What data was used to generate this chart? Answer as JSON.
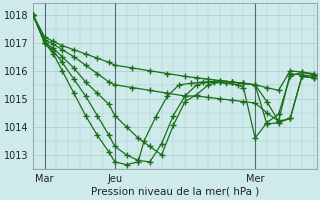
{
  "background_color": "#ceeaea",
  "grid_color": "#aacccc",
  "line_color": "#1a6e1a",
  "marker_color": "#1a6e1a",
  "xlabel": "Pression niveau de la mer( hPa )",
  "yticks": [
    1013,
    1014,
    1015,
    1016,
    1017,
    1018
  ],
  "ylim": [
    1012.5,
    1018.4
  ],
  "xlim": [
    0,
    97
  ],
  "xtick_positions": [
    4,
    28,
    76
  ],
  "xtick_labels": [
    "Mar",
    "Jeu",
    "Mer"
  ],
  "vlines": [
    4,
    28,
    76
  ],
  "series": [
    {
      "x": [
        0,
        4,
        7,
        10,
        14,
        18,
        22,
        26,
        28,
        34,
        40,
        46,
        52,
        56,
        60,
        64,
        68,
        72,
        76,
        80,
        84,
        88,
        92,
        96
      ],
      "y": [
        1018.0,
        1017.2,
        1017.05,
        1016.9,
        1016.75,
        1016.6,
        1016.45,
        1016.3,
        1016.2,
        1016.1,
        1016.0,
        1015.9,
        1015.8,
        1015.75,
        1015.7,
        1015.65,
        1015.6,
        1015.55,
        1015.5,
        1015.4,
        1015.3,
        1016.0,
        1015.95,
        1015.9
      ]
    },
    {
      "x": [
        0,
        4,
        7,
        10,
        14,
        18,
        22,
        26,
        28,
        34,
        40,
        46,
        52,
        56,
        60,
        64,
        68,
        72,
        76,
        80,
        84,
        88,
        92,
        96
      ],
      "y": [
        1018.0,
        1017.1,
        1016.95,
        1016.75,
        1016.5,
        1016.2,
        1015.9,
        1015.6,
        1015.5,
        1015.4,
        1015.3,
        1015.2,
        1015.1,
        1015.1,
        1015.05,
        1015.0,
        1014.95,
        1014.9,
        1014.85,
        1014.5,
        1014.2,
        1015.9,
        1015.85,
        1015.8
      ]
    },
    {
      "x": [
        0,
        4,
        7,
        10,
        14,
        18,
        22,
        26,
        28,
        32,
        36,
        40,
        44,
        48,
        52,
        56,
        60,
        64,
        68,
        72,
        76,
        80,
        84,
        88,
        92,
        96
      ],
      "y": [
        1018.0,
        1017.0,
        1016.8,
        1016.5,
        1016.1,
        1015.6,
        1015.2,
        1014.8,
        1014.4,
        1014.0,
        1013.6,
        1013.3,
        1013.0,
        1014.05,
        1014.9,
        1015.15,
        1015.5,
        1015.6,
        1015.6,
        1015.55,
        1015.5,
        1014.9,
        1014.2,
        1014.3,
        1015.8,
        1015.75
      ]
    },
    {
      "x": [
        0,
        4,
        7,
        10,
        14,
        18,
        22,
        26,
        28,
        32,
        36,
        40,
        44,
        48,
        52,
        56,
        60,
        64,
        68,
        72,
        76,
        80,
        84,
        88,
        92,
        96
      ],
      "y": [
        1018.0,
        1017.0,
        1016.7,
        1016.3,
        1015.7,
        1015.1,
        1014.4,
        1013.7,
        1013.3,
        1013.0,
        1012.8,
        1012.75,
        1013.4,
        1014.4,
        1015.1,
        1015.5,
        1015.6,
        1015.65,
        1015.6,
        1015.55,
        1015.5,
        1014.1,
        1014.15,
        1014.3,
        1015.8,
        1015.75
      ]
    },
    {
      "x": [
        0,
        4,
        7,
        10,
        14,
        18,
        22,
        26,
        28,
        32,
        36,
        38,
        42,
        46,
        50,
        54,
        58,
        62,
        66,
        70,
        72,
        76,
        80,
        84,
        88,
        92,
        96
      ],
      "y": [
        1018.0,
        1017.0,
        1016.6,
        1016.0,
        1015.2,
        1014.4,
        1013.7,
        1013.1,
        1012.75,
        1012.65,
        1012.75,
        1013.5,
        1014.35,
        1015.1,
        1015.5,
        1015.55,
        1015.6,
        1015.6,
        1015.55,
        1015.5,
        1015.4,
        1013.6,
        1014.15,
        1014.45,
        1015.8,
        1015.95,
        1015.85
      ]
    }
  ]
}
